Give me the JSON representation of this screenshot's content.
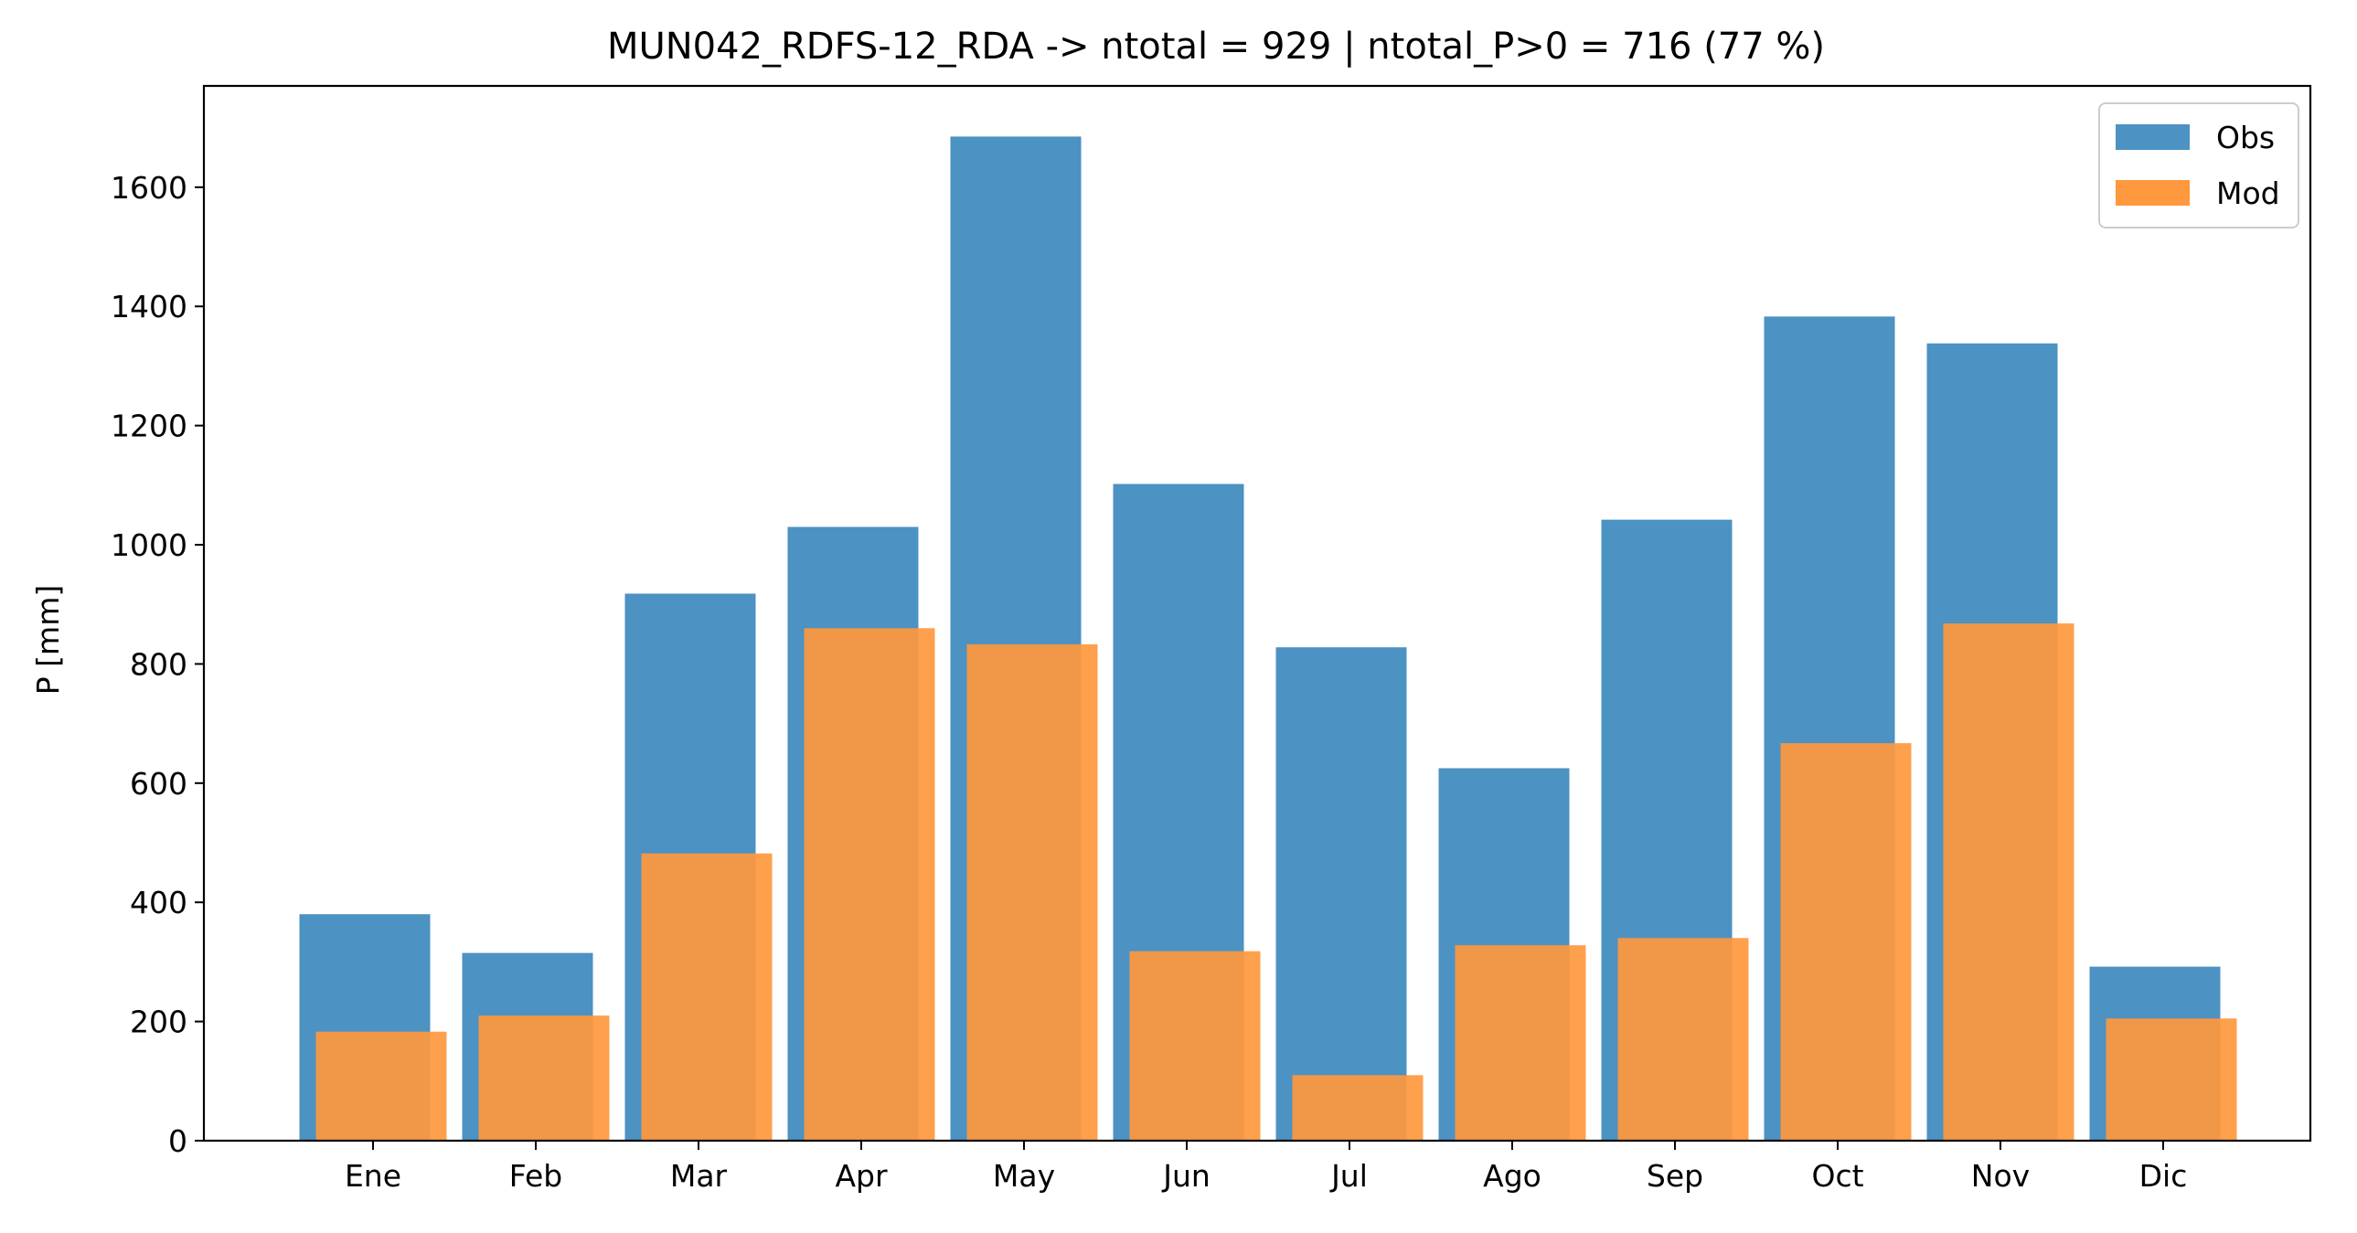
{
  "chart_data": {
    "type": "bar",
    "title": "MUN042_RDFS-12_RDA -> ntotal = 929 | ntotal_P>0 = 716 (77 %)",
    "xlabel": "",
    "ylabel": "P [mm]",
    "ylim": [
      0,
      1770
    ],
    "yticks": [
      0,
      200,
      400,
      600,
      800,
      1000,
      1200,
      1400,
      1600
    ],
    "categories": [
      "Ene",
      "Feb",
      "Mar",
      "Apr",
      "May",
      "Jun",
      "Jul",
      "Ago",
      "Sep",
      "Oct",
      "Nov",
      "Dic"
    ],
    "series": [
      {
        "name": "Obs",
        "color": "#4c92c3",
        "values": [
          380,
          315,
          918,
          1030,
          1685,
          1102,
          828,
          625,
          1042,
          1383,
          1338,
          292
        ]
      },
      {
        "name": "Mod",
        "color": "#ff983e",
        "values": [
          183,
          210,
          482,
          860,
          833,
          318,
          110,
          328,
          340,
          667,
          868,
          205
        ]
      }
    ],
    "legend_position": "top-right",
    "grid": false
  }
}
